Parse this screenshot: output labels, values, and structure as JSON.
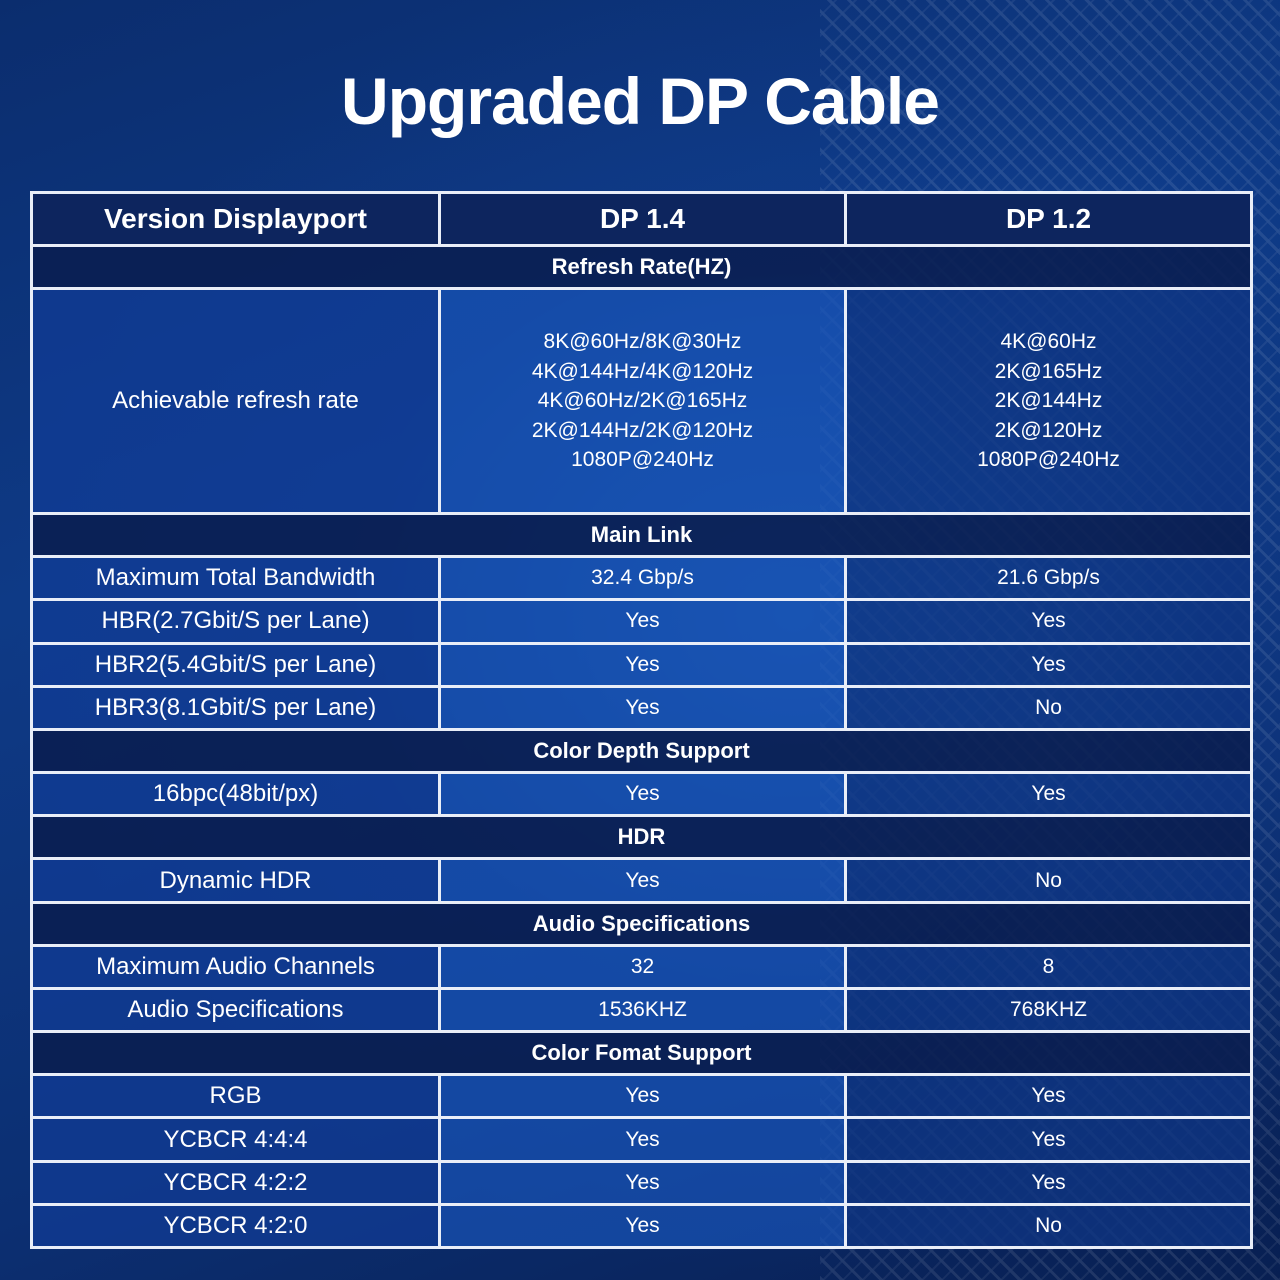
{
  "title": "Upgraded DP Cable",
  "colors": {
    "background": "#0c2f72",
    "border": "#e9eef8",
    "no": "#ff1a1a"
  },
  "table": {
    "header": {
      "label": "Version Displayport",
      "a": "DP 1.4",
      "b": "DP 1.2"
    },
    "sections": [
      {
        "title": "Refresh Rate(HZ)",
        "rows": [
          {
            "label": "Achievable refresh rate",
            "a": [
              "8K@60Hz/8K@30Hz",
              "4K@144Hz/4K@120Hz",
              "4K@60Hz/2K@165Hz",
              "2K@144Hz/2K@120Hz",
              "1080P@240Hz"
            ],
            "b": [
              "4K@60Hz",
              "2K@165Hz",
              "2K@144Hz",
              "2K@120Hz",
              "1080P@240Hz"
            ]
          }
        ]
      },
      {
        "title": "Main Link",
        "rows": [
          {
            "label": "Maximum Total Bandwidth",
            "a": "32.4 Gbp/s",
            "b": "21.6 Gbp/s"
          },
          {
            "label": "HBR(2.7Gbit/S per Lane)",
            "a": "Yes",
            "b": "Yes"
          },
          {
            "label": "HBR2(5.4Gbit/S per Lane)",
            "a": "Yes",
            "b": "Yes"
          },
          {
            "label": "HBR3(8.1Gbit/S per Lane)",
            "a": "Yes",
            "b": "No"
          }
        ]
      },
      {
        "title": "Color Depth Support",
        "rows": [
          {
            "label": "16bpc(48bit/px)",
            "a": "Yes",
            "b": "Yes"
          }
        ]
      },
      {
        "title": "HDR",
        "rows": [
          {
            "label": "Dynamic HDR",
            "a": "Yes",
            "b": "No"
          }
        ]
      },
      {
        "title": "Audio Specifications",
        "rows": [
          {
            "label": "Maximum Audio Channels",
            "a": "32",
            "b": "8"
          },
          {
            "label": "Audio Specifications",
            "a": "1536KHZ",
            "b": "768KHZ"
          }
        ]
      },
      {
        "title": "Color Fomat Support",
        "rows": [
          {
            "label": "RGB",
            "a": "Yes",
            "b": "Yes"
          },
          {
            "label": "YCBCR 4:4:4",
            "a": "Yes",
            "b": "Yes"
          },
          {
            "label": "YCBCR 4:2:2",
            "a": "Yes",
            "b": "Yes"
          },
          {
            "label": "YCBCR 4:2:0",
            "a": "Yes",
            "b": "No"
          }
        ]
      }
    ]
  }
}
